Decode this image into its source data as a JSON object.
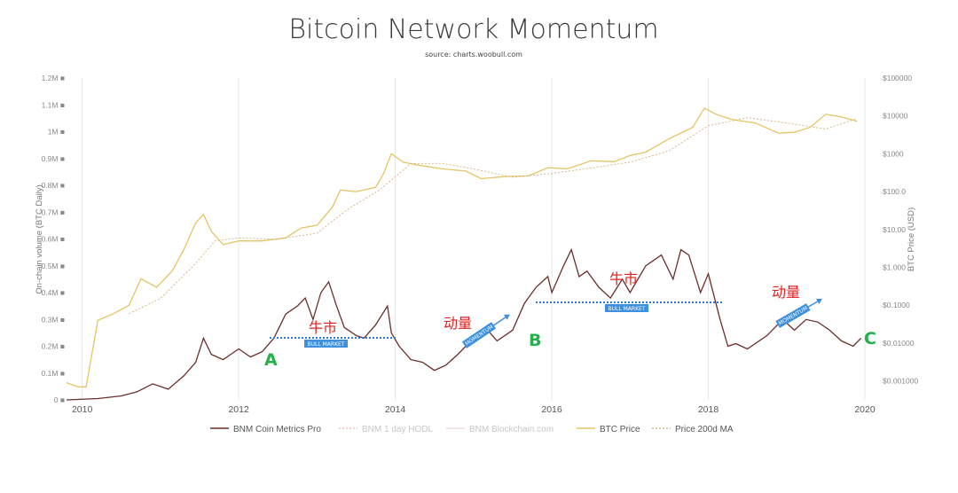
{
  "chart_data": {
    "type": "line",
    "title": "Bitcoin Network Momentum",
    "subtitle": "source: charts.woobull.com",
    "ylabel_left": "On-chain volume (BTC Daily)",
    "ylabel_right": "BTC Price (USD)",
    "x_ticks": [
      "2010",
      "2012",
      "2014",
      "2016",
      "2018",
      "2020"
    ],
    "y_left_ticks": [
      "0",
      "0.1M",
      "0.2M",
      "0.3M",
      "0.4M",
      "0.5M",
      "0.6M",
      "0.7M",
      "0.8M",
      "0.9M",
      "1M",
      "1.1M",
      "1.2M"
    ],
    "y_right_ticks": [
      "$0.001000",
      "$0.01000",
      "$0.1000",
      "$1.000",
      "$10.00",
      "$100.0",
      "$1000",
      "$10000",
      "$100000"
    ],
    "xlim": [
      2009.8,
      2020.0
    ],
    "ylim_left": [
      0,
      1200000
    ],
    "ylim_right_log10": [
      -3.5,
      5
    ],
    "grid": "vertical",
    "legend_position": "bottom",
    "series": [
      {
        "name": "BNM Coin Metrics Pro",
        "color": "#6b2e2a",
        "axis": "left",
        "x": [
          2009.8,
          2010.2,
          2010.5,
          2010.7,
          2010.9,
          2011.1,
          2011.3,
          2011.45,
          2011.55,
          2011.65,
          2011.8,
          2012.0,
          2012.15,
          2012.3,
          2012.45,
          2012.6,
          2012.75,
          2012.85,
          2012.95,
          2013.05,
          2013.15,
          2013.25,
          2013.35,
          2013.5,
          2013.6,
          2013.75,
          2013.9,
          2013.95,
          2014.05,
          2014.2,
          2014.35,
          2014.5,
          2014.65,
          2014.8,
          2015.0,
          2015.15,
          2015.3,
          2015.5,
          2015.65,
          2015.8,
          2015.95,
          2016.0,
          2016.15,
          2016.25,
          2016.35,
          2016.45,
          2016.6,
          2016.75,
          2016.9,
          2017.0,
          2017.2,
          2017.4,
          2017.55,
          2017.65,
          2017.75,
          2017.9,
          2018.0,
          2018.15,
          2018.25,
          2018.35,
          2018.5,
          2018.75,
          2018.95,
          2019.1,
          2019.25,
          2019.4,
          2019.55,
          2019.7,
          2019.85,
          2019.95
        ],
        "y": [
          0,
          5000,
          15000,
          30000,
          60000,
          40000,
          90000,
          140000,
          230000,
          170000,
          150000,
          190000,
          160000,
          180000,
          230000,
          320000,
          350000,
          380000,
          300000,
          400000,
          440000,
          350000,
          270000,
          240000,
          230000,
          280000,
          350000,
          250000,
          200000,
          150000,
          140000,
          110000,
          130000,
          170000,
          230000,
          270000,
          220000,
          260000,
          360000,
          420000,
          460000,
          400000,
          500000,
          560000,
          460000,
          480000,
          420000,
          380000,
          450000,
          400000,
          500000,
          540000,
          450000,
          560000,
          540000,
          400000,
          470000,
          300000,
          200000,
          210000,
          190000,
          240000,
          300000,
          260000,
          300000,
          290000,
          260000,
          220000,
          200000,
          230000
        ]
      },
      {
        "name": "BNM 1 day HODL",
        "color": "#f0c0c0",
        "axis": "left",
        "x": [],
        "y": []
      },
      {
        "name": "BNM Blockchain.com",
        "color": "#f3dcdc",
        "axis": "left",
        "x": [],
        "y": []
      },
      {
        "name": "BTC Price",
        "color": "#e6c364",
        "axis": "right",
        "x": [
          2009.8,
          2009.95,
          2010.05,
          2010.2,
          2010.4,
          2010.6,
          2010.75,
          2010.95,
          2011.15,
          2011.3,
          2011.45,
          2011.55,
          2011.65,
          2011.8,
          2012.0,
          2012.3,
          2012.6,
          2012.8,
          2013.0,
          2013.2,
          2013.3,
          2013.5,
          2013.75,
          2013.85,
          2013.95,
          2014.1,
          2014.3,
          2014.6,
          2014.9,
          2015.1,
          2015.4,
          2015.7,
          2015.95,
          2016.2,
          2016.5,
          2016.8,
          2017.0,
          2017.2,
          2017.5,
          2017.8,
          2017.95,
          2018.1,
          2018.3,
          2018.6,
          2018.9,
          2019.1,
          2019.3,
          2019.5,
          2019.7,
          2019.9
        ],
        "y": [
          0.0009,
          0.0007,
          0.0007,
          0.04,
          0.06,
          0.1,
          0.5,
          0.3,
          0.8,
          3.0,
          15.0,
          25.0,
          9.0,
          4.0,
          5.0,
          5.0,
          6.0,
          11.0,
          13.0,
          40.0,
          110.0,
          100.0,
          130.0,
          300.0,
          1000.0,
          600.0,
          500.0,
          400.0,
          350.0,
          220.0,
          250.0,
          260.0,
          430.0,
          400.0,
          650.0,
          620.0,
          900.0,
          1100.0,
          2500.0,
          5000.0,
          16000.0,
          11000.0,
          8000.0,
          6500.0,
          3500.0,
          3700.0,
          5000.0,
          11000.0,
          9500.0,
          7200.0
        ]
      },
      {
        "name": "Price 200d MA",
        "color": "#d7b88a",
        "axis": "right",
        "x": [
          2010.6,
          2011.0,
          2011.4,
          2011.7,
          2012.0,
          2012.5,
          2013.0,
          2013.4,
          2013.8,
          2014.2,
          2014.6,
          2015.0,
          2015.5,
          2016.0,
          2016.5,
          2017.0,
          2017.5,
          2018.0,
          2018.5,
          2019.0,
          2019.5,
          2019.9
        ],
        "y": [
          0.06,
          0.15,
          1.0,
          5.0,
          6.0,
          5.5,
          8.0,
          35.0,
          110.0,
          550.0,
          560.0,
          400.0,
          240.0,
          300.0,
          420.0,
          600.0,
          1200.0,
          5500.0,
          9000.0,
          6500.0,
          4500.0,
          8500.0
        ]
      }
    ],
    "annotations": {
      "a_label": "A",
      "b_label": "B",
      "c_label": "C",
      "bull1_cn": "牛市",
      "bull1_box": "BULL MARKET",
      "bull2_cn": "牛市",
      "bull2_box": "BULL MARKET",
      "mom1_cn": "动量",
      "mom1_box": "MOMENTUM",
      "mom2_cn": "动量",
      "mom2_box": "MOMENTUM"
    },
    "colors": {
      "annotation_line": "#2f7ad6",
      "annotation_box": "#3d8fe0",
      "letters": "#22b14c",
      "chinese_text": "#e02020",
      "grid": "#e6e6e6"
    }
  }
}
